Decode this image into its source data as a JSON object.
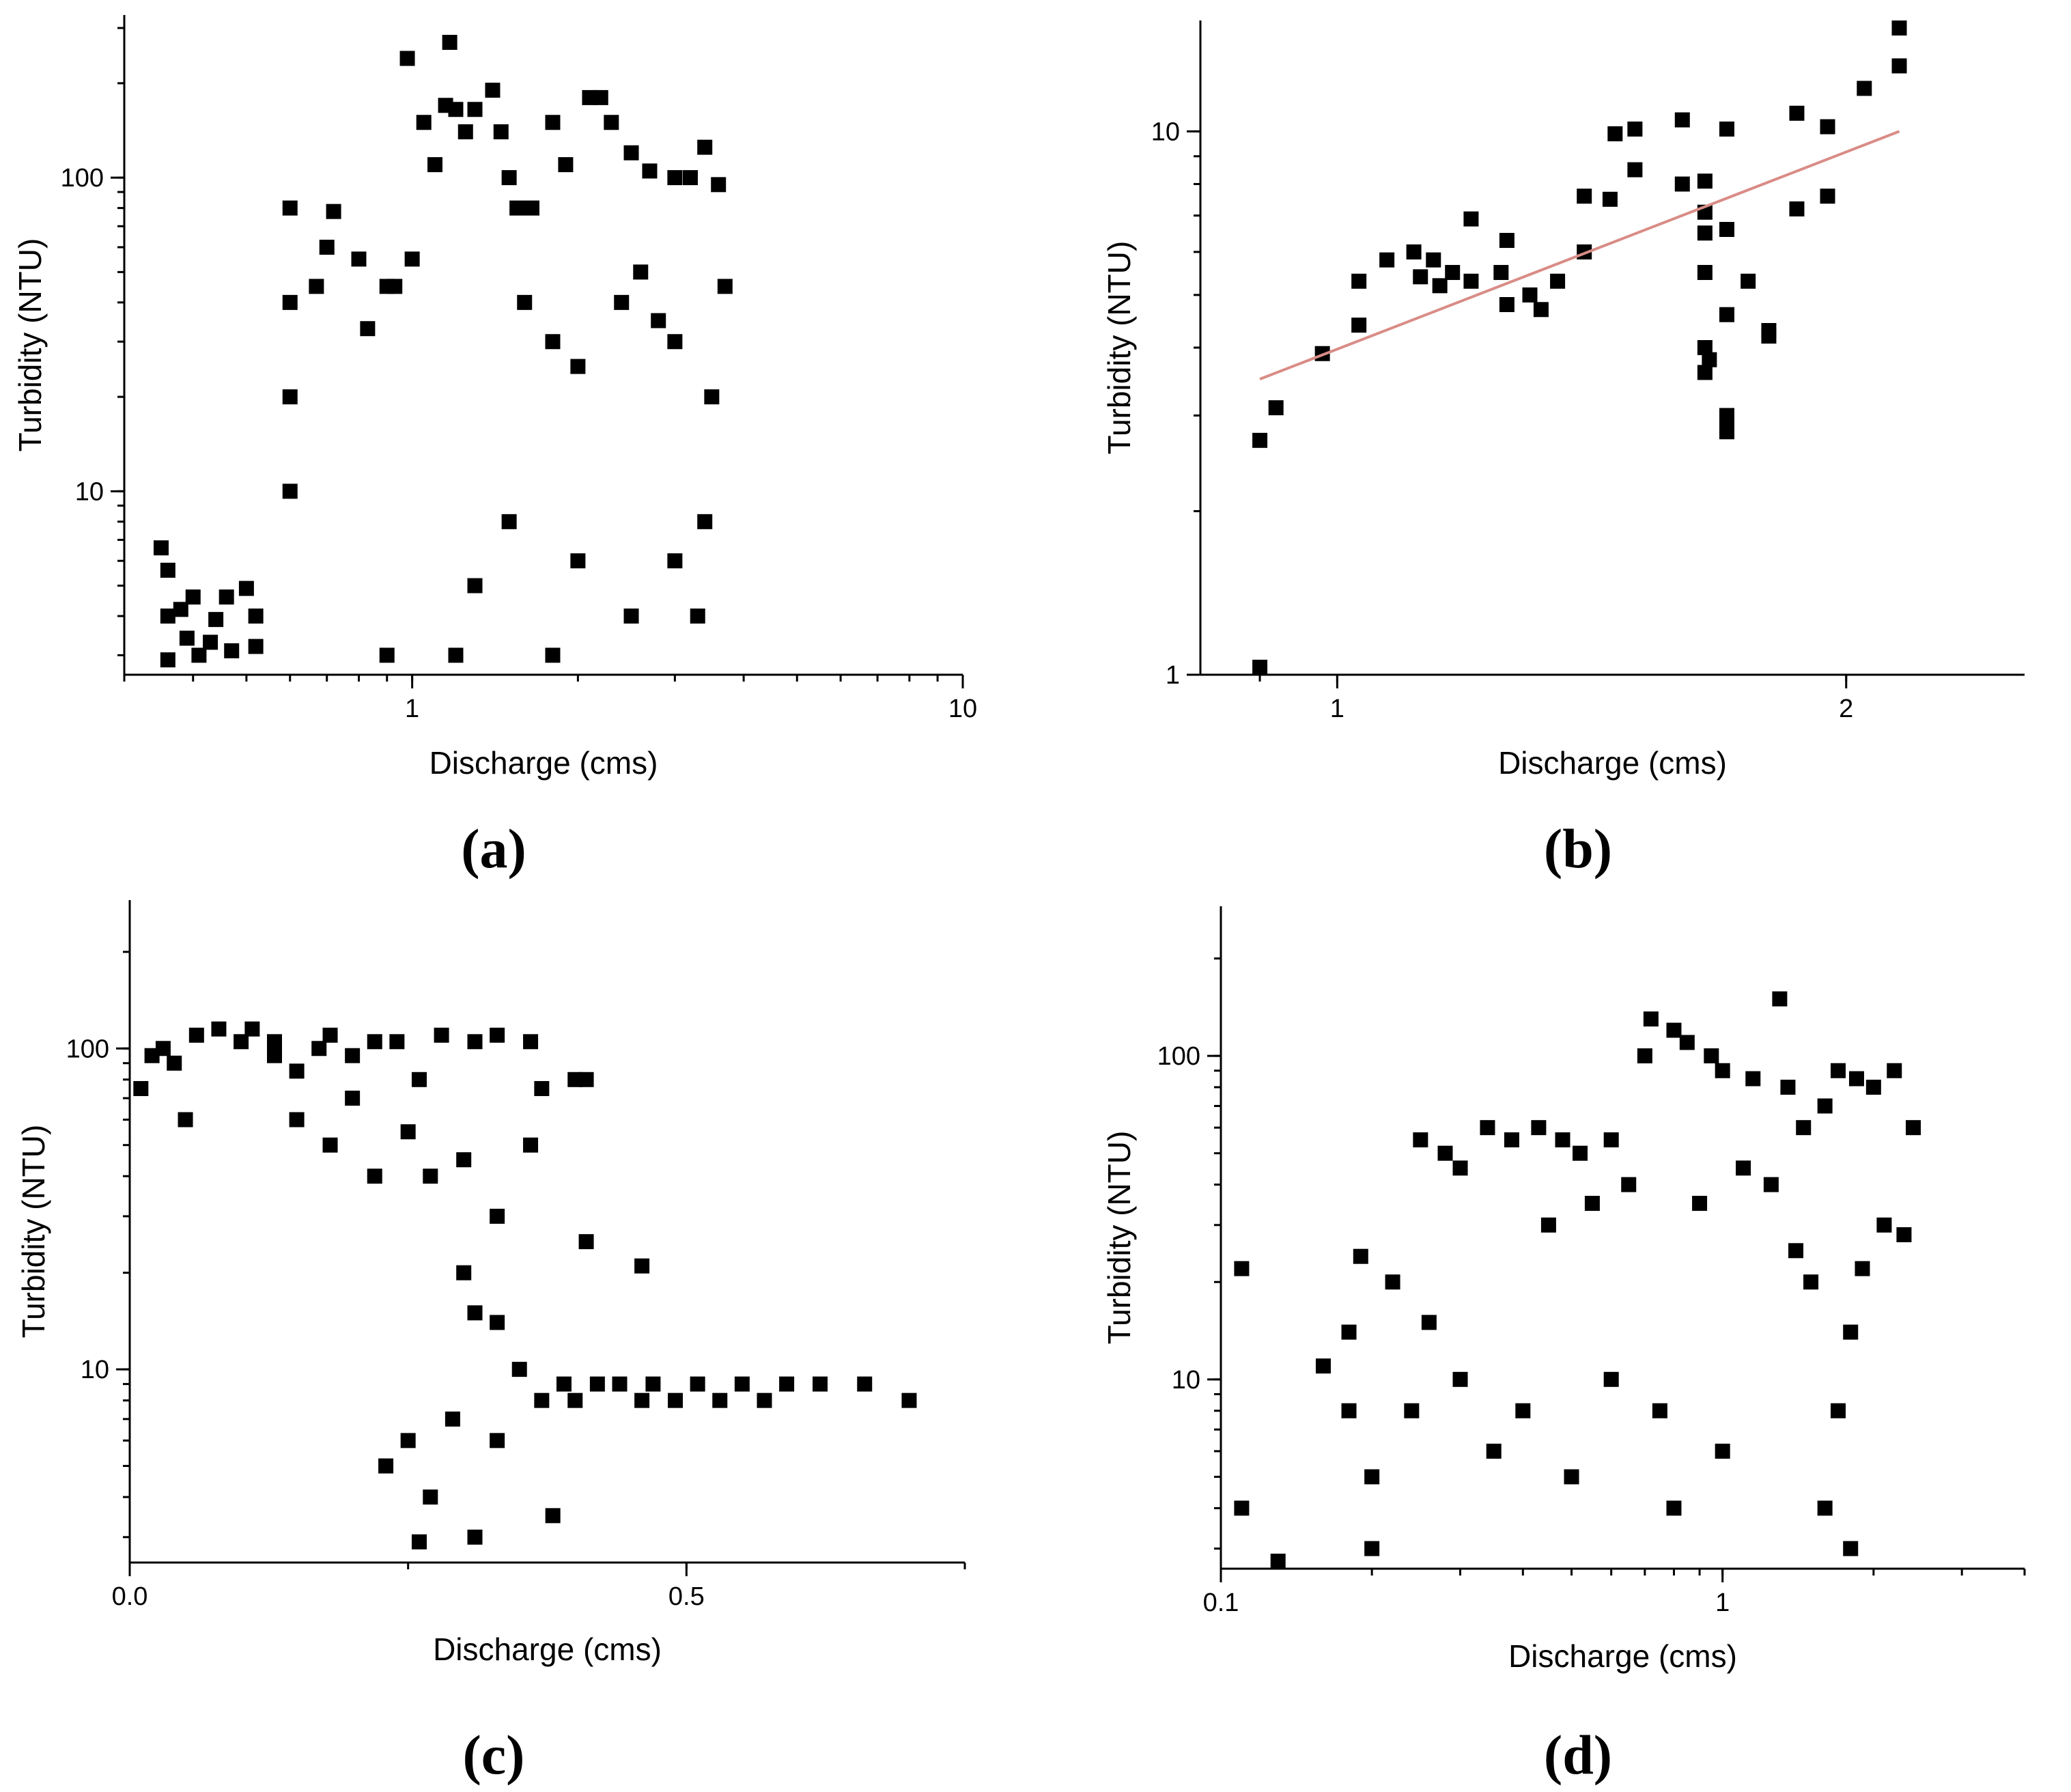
{
  "chart_data": [
    {
      "id": "a",
      "type": "scatter",
      "panel_label": "(a)",
      "xlabel": "Discharge (cms)",
      "ylabel": "Turbidity (NTU)",
      "xscale": "log",
      "yscale": "log",
      "xlim": [
        0.3,
        10
      ],
      "ylim": [
        2.6,
        330
      ],
      "xticks": [
        {
          "v": 1,
          "label": "1"
        },
        {
          "v": 10,
          "label": "10"
        }
      ],
      "yticks": [
        {
          "v": 10,
          "label": "10"
        },
        {
          "v": 100,
          "label": "100"
        }
      ],
      "series": [
        {
          "marker": "square",
          "color": "#000000",
          "points": [
            [
              0.35,
              6.6
            ],
            [
              0.36,
              5.6
            ],
            [
              0.36,
              4.0
            ],
            [
              0.36,
              2.9
            ],
            [
              0.38,
              4.2
            ],
            [
              0.39,
              3.4
            ],
            [
              0.4,
              4.6
            ],
            [
              0.41,
              3.0
            ],
            [
              0.43,
              3.3
            ],
            [
              0.44,
              3.9
            ],
            [
              0.46,
              4.6
            ],
            [
              0.47,
              3.1
            ],
            [
              0.5,
              4.9
            ],
            [
              0.52,
              4.0
            ],
            [
              0.52,
              3.2
            ],
            [
              0.6,
              80
            ],
            [
              0.6,
              40
            ],
            [
              0.6,
              20
            ],
            [
              0.6,
              10
            ],
            [
              0.67,
              45
            ],
            [
              0.7,
              60
            ],
            [
              0.72,
              78
            ],
            [
              0.8,
              55
            ],
            [
              0.83,
              33
            ],
            [
              0.9,
              45
            ],
            [
              0.93,
              45
            ],
            [
              0.98,
              240
            ],
            [
              1.0,
              55
            ],
            [
              1.05,
              150
            ],
            [
              1.1,
              110
            ],
            [
              1.15,
              170
            ],
            [
              1.17,
              270
            ],
            [
              1.2,
              165
            ],
            [
              1.25,
              140
            ],
            [
              1.3,
              165
            ],
            [
              1.4,
              190
            ],
            [
              1.45,
              140
            ],
            [
              1.5,
              100
            ],
            [
              1.55,
              80
            ],
            [
              1.65,
              80
            ],
            [
              1.8,
              150
            ],
            [
              1.9,
              110
            ],
            [
              2.1,
              180
            ],
            [
              2.2,
              180
            ],
            [
              2.3,
              150
            ],
            [
              2.5,
              120
            ],
            [
              2.7,
              105
            ],
            [
              3.0,
              100
            ],
            [
              3.2,
              100
            ],
            [
              3.4,
              125
            ],
            [
              3.6,
              95
            ],
            [
              3.7,
              45
            ],
            [
              3.5,
              20
            ],
            [
              3.4,
              8
            ],
            [
              3.3,
              4
            ],
            [
              1.6,
              40
            ],
            [
              1.8,
              30
            ],
            [
              2.0,
              25
            ],
            [
              2.4,
              40
            ],
            [
              2.6,
              50
            ],
            [
              2.8,
              35
            ],
            [
              3.0,
              30
            ],
            [
              1.3,
              5
            ],
            [
              1.5,
              8
            ],
            [
              2.0,
              6
            ],
            [
              2.5,
              4
            ],
            [
              3.0,
              6
            ],
            [
              1.2,
              3
            ],
            [
              0.9,
              3
            ],
            [
              1.8,
              3
            ]
          ]
        }
      ]
    },
    {
      "id": "b",
      "type": "scatter",
      "panel_label": "(b)",
      "xlabel": "Discharge (cms)",
      "ylabel": "Turbidity (NTU)",
      "xscale": "log",
      "yscale": "log",
      "xlim": [
        0.83,
        2.55
      ],
      "ylim": [
        1,
        16
      ],
      "xticks": [
        {
          "v": 1,
          "label": "1"
        },
        {
          "v": 2,
          "label": "2"
        }
      ],
      "yticks": [
        {
          "v": 1,
          "label": "1"
        },
        {
          "v": 10,
          "label": "10"
        }
      ],
      "series": [
        {
          "marker": "square",
          "color": "#000000",
          "points": [
            [
              0.9,
              1.0
            ],
            [
              0.9,
              2.7
            ],
            [
              0.92,
              3.1
            ],
            [
              0.98,
              3.9
            ],
            [
              1.03,
              4.4
            ],
            [
              1.03,
              5.3
            ],
            [
              1.07,
              5.8
            ],
            [
              1.11,
              6.0
            ],
            [
              1.12,
              5.4
            ],
            [
              1.14,
              5.8
            ],
            [
              1.15,
              5.2
            ],
            [
              1.17,
              5.5
            ],
            [
              1.2,
              5.3
            ],
            [
              1.2,
              6.9
            ],
            [
              1.25,
              5.5
            ],
            [
              1.26,
              6.3
            ],
            [
              1.26,
              4.8
            ],
            [
              1.3,
              5.0
            ],
            [
              1.32,
              4.7
            ],
            [
              1.35,
              5.3
            ],
            [
              1.4,
              6.0
            ],
            [
              1.4,
              7.6
            ],
            [
              1.45,
              7.5
            ],
            [
              1.46,
              9.9
            ],
            [
              1.5,
              10.1
            ],
            [
              1.5,
              8.5
            ],
            [
              1.6,
              10.5
            ],
            [
              1.6,
              8.0
            ],
            [
              1.65,
              8.1
            ],
            [
              1.65,
              7.1
            ],
            [
              1.65,
              6.5
            ],
            [
              1.65,
              5.5
            ],
            [
              1.65,
              4.0
            ],
            [
              1.65,
              3.6
            ],
            [
              1.66,
              3.8
            ],
            [
              1.7,
              10.1
            ],
            [
              1.7,
              6.6
            ],
            [
              1.7,
              4.6
            ],
            [
              1.7,
              3.0
            ],
            [
              1.7,
              2.8
            ],
            [
              1.7,
              2.9
            ],
            [
              1.75,
              5.3
            ],
            [
              1.8,
              4.3
            ],
            [
              1.8,
              4.2
            ],
            [
              1.87,
              10.8
            ],
            [
              1.87,
              7.2
            ],
            [
              1.95,
              10.2
            ],
            [
              1.95,
              7.6
            ],
            [
              2.05,
              12.0
            ],
            [
              2.15,
              15.8
            ],
            [
              2.15,
              13.2
            ]
          ]
        },
        {
          "type": "line",
          "color": "#d98c86",
          "points": [
            [
              0.9,
              3.5
            ],
            [
              2.15,
              10.0
            ]
          ]
        }
      ]
    },
    {
      "id": "c",
      "type": "scatter",
      "panel_label": "(c)",
      "xlabel": "Discharge (cms)",
      "ylabel": "Turbidity (NTU)",
      "xscale": "linear",
      "yscale": "log",
      "xlim": [
        0,
        0.75
      ],
      "ylim": [
        2.5,
        290
      ],
      "xticks": [
        {
          "v": 0,
          "label": "0.0"
        },
        {
          "v": 0.5,
          "label": "0.5"
        }
      ],
      "yticks": [
        {
          "v": 10,
          "label": "10"
        },
        {
          "v": 100,
          "label": "100"
        }
      ],
      "series": [
        {
          "marker": "square",
          "color": "#000000",
          "points": [
            [
              0.01,
              75
            ],
            [
              0.02,
              95
            ],
            [
              0.03,
              100
            ],
            [
              0.04,
              90
            ],
            [
              0.05,
              60
            ],
            [
              0.06,
              110
            ],
            [
              0.08,
              115
            ],
            [
              0.1,
              105
            ],
            [
              0.11,
              115
            ],
            [
              0.13,
              105
            ],
            [
              0.13,
              95
            ],
            [
              0.15,
              85
            ],
            [
              0.17,
              100
            ],
            [
              0.18,
              110
            ],
            [
              0.2,
              95
            ],
            [
              0.22,
              105
            ],
            [
              0.24,
              105
            ],
            [
              0.26,
              80
            ],
            [
              0.28,
              110
            ],
            [
              0.31,
              105
            ],
            [
              0.33,
              110
            ],
            [
              0.36,
              105
            ],
            [
              0.37,
              75
            ],
            [
              0.41,
              80
            ],
            [
              0.15,
              60
            ],
            [
              0.18,
              50
            ],
            [
              0.2,
              70
            ],
            [
              0.22,
              40
            ],
            [
              0.25,
              55
            ],
            [
              0.27,
              40
            ],
            [
              0.3,
              45
            ],
            [
              0.33,
              30
            ],
            [
              0.36,
              50
            ],
            [
              0.4,
              80
            ],
            [
              0.41,
              25
            ],
            [
              0.46,
              21
            ],
            [
              0.3,
              20
            ],
            [
              0.31,
              15
            ],
            [
              0.33,
              14
            ],
            [
              0.35,
              10
            ],
            [
              0.37,
              8
            ],
            [
              0.39,
              9
            ],
            [
              0.4,
              8
            ],
            [
              0.42,
              9
            ],
            [
              0.44,
              9
            ],
            [
              0.46,
              8
            ],
            [
              0.47,
              9
            ],
            [
              0.49,
              8
            ],
            [
              0.51,
              9
            ],
            [
              0.53,
              8
            ],
            [
              0.55,
              9
            ],
            [
              0.57,
              8
            ],
            [
              0.59,
              9
            ],
            [
              0.62,
              9
            ],
            [
              0.66,
              9
            ],
            [
              0.7,
              8
            ],
            [
              0.38,
              3.5
            ],
            [
              0.26,
              2.9
            ],
            [
              0.31,
              3.0
            ],
            [
              0.23,
              5
            ],
            [
              0.25,
              6
            ],
            [
              0.27,
              4
            ],
            [
              0.29,
              7
            ],
            [
              0.33,
              6
            ]
          ]
        }
      ]
    },
    {
      "id": "d",
      "type": "scatter",
      "panel_label": "(d)",
      "xlabel": "Discharge (cms)",
      "ylabel": "Turbidity (NTU)",
      "xscale": "log",
      "yscale": "log",
      "xlim": [
        0.1,
        4
      ],
      "ylim": [
        2.6,
        290
      ],
      "xticks": [
        {
          "v": 0.1,
          "label": "0.1"
        },
        {
          "v": 1,
          "label": "1"
        }
      ],
      "yticks": [
        {
          "v": 10,
          "label": "10"
        },
        {
          "v": 100,
          "label": "100"
        }
      ],
      "series": [
        {
          "marker": "square",
          "color": "#000000",
          "points": [
            [
              0.11,
              22
            ],
            [
              0.11,
              4
            ],
            [
              0.13,
              2.6
            ],
            [
              0.16,
              11
            ],
            [
              0.18,
              14
            ],
            [
              0.18,
              8
            ],
            [
              0.19,
              24
            ],
            [
              0.2,
              5
            ],
            [
              0.2,
              3
            ],
            [
              0.22,
              20
            ],
            [
              0.25,
              55
            ],
            [
              0.28,
              50
            ],
            [
              0.3,
              45
            ],
            [
              0.34,
              60
            ],
            [
              0.38,
              55
            ],
            [
              0.43,
              60
            ],
            [
              0.48,
              55
            ],
            [
              0.52,
              50
            ],
            [
              0.6,
              55
            ],
            [
              0.7,
              100
            ],
            [
              0.72,
              130
            ],
            [
              0.8,
              120
            ],
            [
              0.85,
              110
            ],
            [
              0.95,
              100
            ],
            [
              1.0,
              90
            ],
            [
              1.15,
              85
            ],
            [
              1.3,
              150
            ],
            [
              1.35,
              80
            ],
            [
              1.45,
              60
            ],
            [
              1.6,
              70
            ],
            [
              1.7,
              90
            ],
            [
              1.85,
              85
            ],
            [
              2.0,
              80
            ],
            [
              2.2,
              90
            ],
            [
              2.4,
              60
            ],
            [
              2.3,
              28
            ],
            [
              2.1,
              30
            ],
            [
              1.9,
              22
            ],
            [
              1.8,
              14
            ],
            [
              1.7,
              8
            ],
            [
              1.6,
              4
            ],
            [
              1.8,
              3
            ],
            [
              1.5,
              20
            ],
            [
              1.4,
              25
            ],
            [
              1.25,
              40
            ],
            [
              1.1,
              45
            ],
            [
              0.9,
              35
            ],
            [
              0.65,
              40
            ],
            [
              0.55,
              35
            ],
            [
              0.45,
              30
            ],
            [
              0.6,
              10
            ],
            [
              0.75,
              8
            ],
            [
              1.0,
              6
            ],
            [
              0.8,
              4
            ],
            [
              0.5,
              5
            ],
            [
              0.4,
              8
            ],
            [
              0.35,
              6
            ],
            [
              0.3,
              10
            ],
            [
              0.26,
              15
            ],
            [
              0.24,
              8
            ]
          ]
        }
      ]
    }
  ]
}
